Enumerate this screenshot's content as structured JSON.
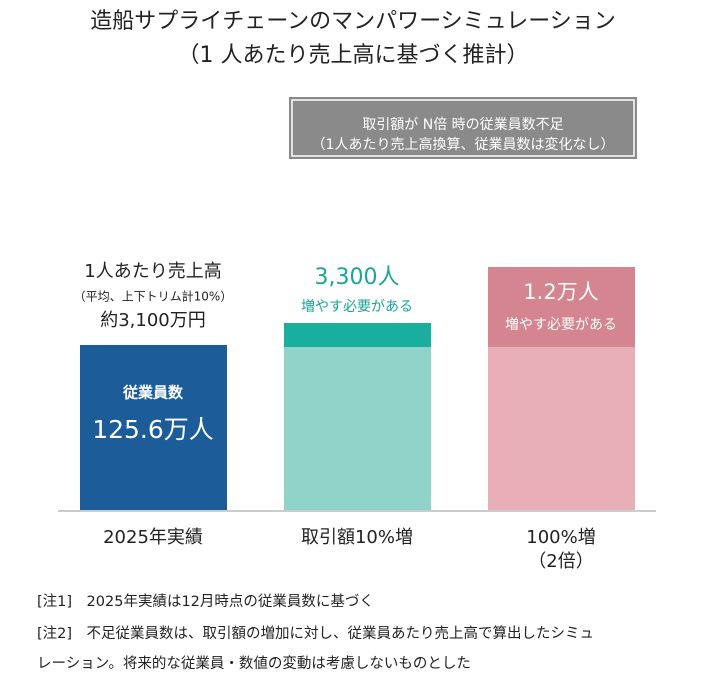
{
  "title": [
    "造船サプライチェーンのマンパワーシミュレーション",
    "（1 人あたり売上高に基づく推計）"
  ],
  "legend_box": [
    "取引額が N倍 時の従業員数不足",
    "（1人あたり売上高換算、従業員数は変化なし）"
  ],
  "bars": [
    {
      "category": [
        "2025年実績"
      ],
      "above": [
        "1人あたり売上高",
        "（平均、上下トリム計10%）",
        "約3,100万円"
      ],
      "inside": [
        "従業員数",
        "125.6万人"
      ]
    },
    {
      "category": [
        "取引額10%増"
      ],
      "above": [
        "3,300人",
        "増やす必要がある"
      ]
    },
    {
      "category": [
        "100%増",
        "（2倍）"
      ],
      "inside": [
        "1.2万人",
        "増やす必要がある"
      ]
    }
  ],
  "notes": [
    "[注1]　2025年実績は12月時点の従業員数に基づく",
    "[注2]　不足従業員数は、取引額の増加に対し、従業員あたり売上高で算出したシミュ",
    "レーション。将来的な従業員・数値の変動は考慮しないものとした"
  ]
}
